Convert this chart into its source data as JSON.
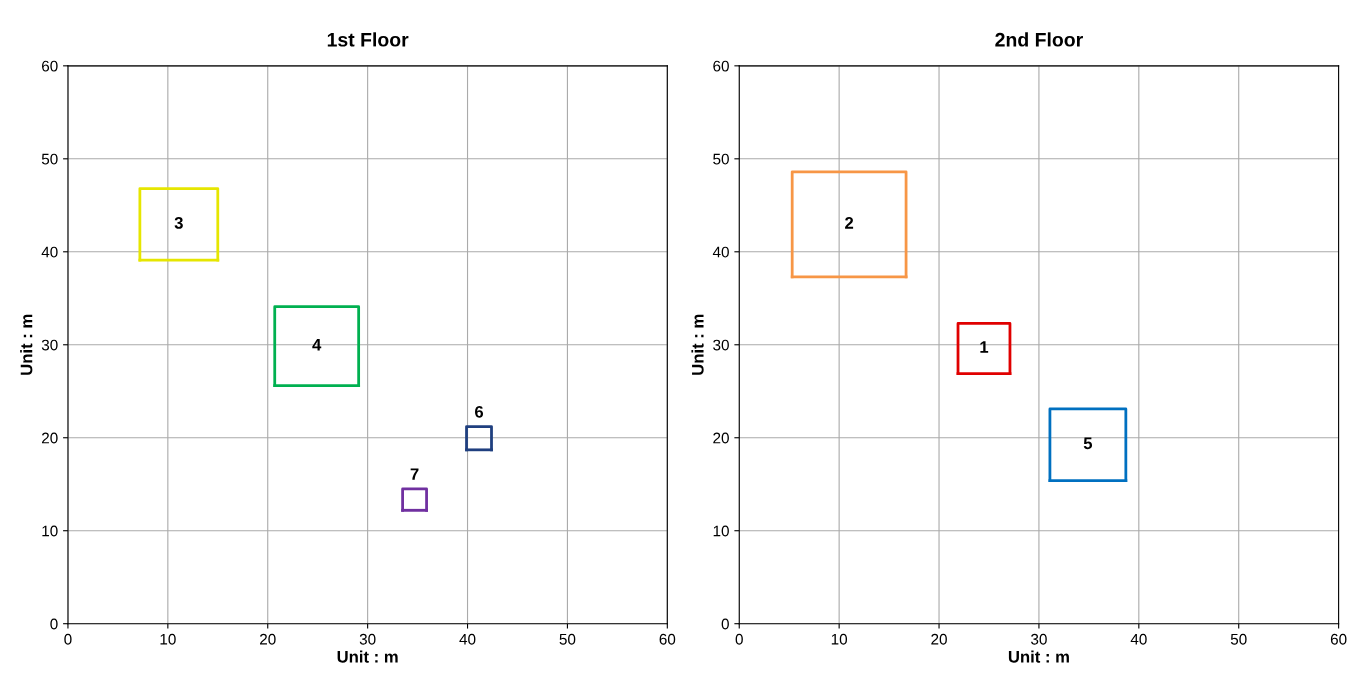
{
  "chart_data": [
    {
      "type": "line",
      "title": "1st Floor",
      "xlabel": "Unit : m",
      "ylabel": "Unit : m",
      "xlim": [
        0,
        60
      ],
      "ylim": [
        0,
        60
      ],
      "xticks": [
        0,
        10,
        20,
        30,
        40,
        50,
        60
      ],
      "yticks": [
        0,
        10,
        20,
        30,
        40,
        50,
        60
      ],
      "grid": true,
      "marker": "none",
      "line_style": "solid",
      "series": [
        {
          "name": "3",
          "color": "#e6e600",
          "x": [
            7.2,
            7.2,
            15.0,
            15.0
          ],
          "values": [
            39.1,
            46.8,
            46.8,
            39.1
          ]
        },
        {
          "color": "#e6e600",
          "x": [
            7.2,
            15.0
          ],
          "values": [
            39.1,
            39.1
          ]
        },
        {
          "name": "4",
          "color": "#00b050",
          "x": [
            20.7,
            20.7,
            29.1,
            29.1
          ],
          "values": [
            25.6,
            34.1,
            34.1,
            25.6
          ]
        },
        {
          "color": "#00b050",
          "x": [
            20.7,
            29.1
          ],
          "values": [
            25.6,
            25.6
          ]
        },
        {
          "name": "6",
          "color": "#1f3f7f",
          "x": [
            39.9,
            39.9,
            42.4,
            42.4
          ],
          "values": [
            18.7,
            21.2,
            21.2,
            18.7
          ]
        },
        {
          "color": "#1f3f7f",
          "x": [
            39.9,
            42.4
          ],
          "values": [
            18.7,
            18.7
          ]
        },
        {
          "name": "7",
          "color": "#7030a0",
          "x": [
            33.5,
            33.5,
            35.9,
            35.9
          ],
          "values": [
            12.2,
            14.5,
            14.5,
            12.2
          ]
        },
        {
          "color": "#7030a0",
          "x": [
            33.5,
            35.9
          ],
          "values": [
            12.2,
            12.2
          ]
        }
      ]
    },
    {
      "type": "line",
      "title": "2nd Floor",
      "xlabel": "Unit : m",
      "ylabel": "Unit : m",
      "xlim": [
        0,
        60
      ],
      "ylim": [
        0,
        60
      ],
      "xticks": [
        0,
        10,
        20,
        30,
        40,
        50,
        60
      ],
      "yticks": [
        0,
        10,
        20,
        30,
        40,
        50,
        60
      ],
      "grid": true,
      "marker": "none",
      "line_style": "solid",
      "series": [
        {
          "name": "2",
          "color": "#f79646",
          "x": [
            5.3,
            5.3,
            16.7,
            16.7
          ],
          "values": [
            37.3,
            48.6,
            48.6,
            37.3
          ]
        },
        {
          "color": "#f79646",
          "x": [
            5.3,
            16.7
          ],
          "values": [
            37.3,
            37.3
          ]
        },
        {
          "name": "1",
          "color": "#e00000",
          "x": [
            21.9,
            21.9,
            27.1,
            27.1
          ],
          "values": [
            26.9,
            32.3,
            32.3,
            26.9
          ]
        },
        {
          "color": "#e00000",
          "x": [
            21.9,
            27.1
          ],
          "values": [
            26.9,
            26.9
          ]
        },
        {
          "name": "5",
          "color": "#0070c0",
          "x": [
            31.1,
            31.1,
            38.7,
            38.7
          ],
          "values": [
            15.4,
            23.1,
            23.1,
            15.4
          ]
        },
        {
          "color": "#0070c0",
          "x": [
            31.1,
            38.7
          ],
          "values": [
            15.4,
            15.4
          ]
        }
      ]
    }
  ]
}
